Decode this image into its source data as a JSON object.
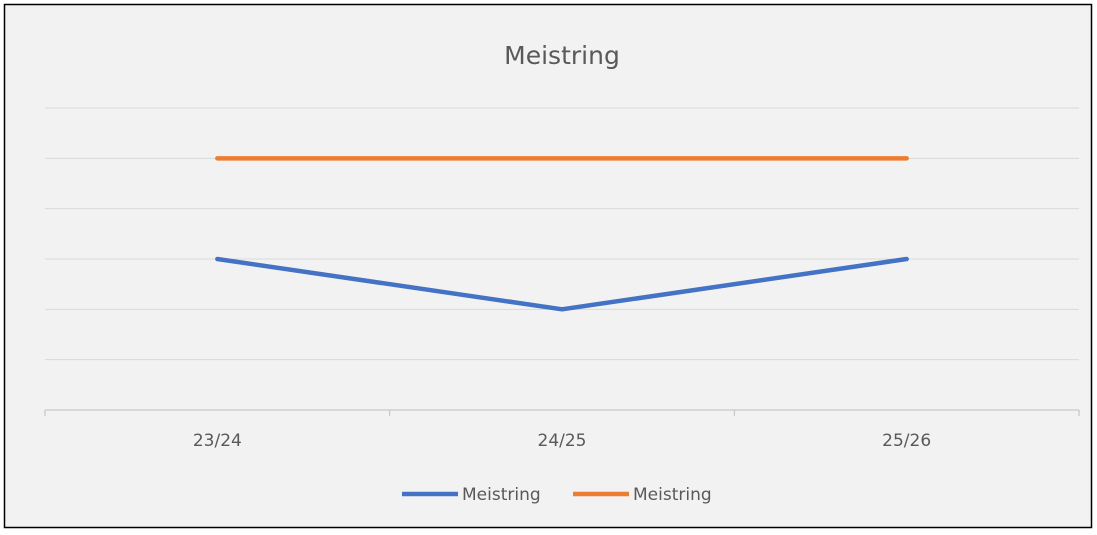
{
  "chart_data": {
    "type": "line",
    "title": "Meistring",
    "categories": [
      "23/24",
      "24/25",
      "25/26"
    ],
    "series": [
      {
        "name": "Meistring",
        "color": "#4472c4",
        "values": [
          3,
          2,
          3
        ]
      },
      {
        "name": "Meistring",
        "color": "#ed7d31",
        "values": [
          5,
          5,
          5
        ]
      }
    ],
    "ylim": [
      0,
      6
    ],
    "yticks": [
      0,
      1,
      2,
      3,
      4,
      5,
      6
    ],
    "grid": true,
    "legend": "bottom"
  }
}
